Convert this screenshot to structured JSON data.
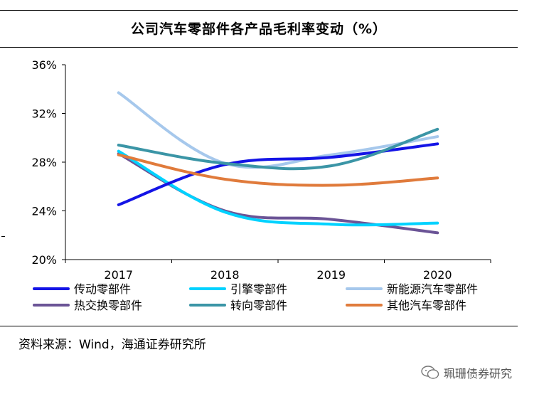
{
  "header": {
    "title": "公司汽车零部件各产品毛利率变动（%）"
  },
  "footer": {
    "source": "资料来源：Wind，海通证券研究所"
  },
  "watermark": {
    "text": "珮珊债券研究",
    "icon": "wechat-icon"
  },
  "chart_data": {
    "type": "line",
    "title": "公司汽车零部件各产品毛利率变动（%）",
    "xlabel": "",
    "ylabel": "",
    "categories": [
      "2017",
      "2018",
      "2019",
      "2020"
    ],
    "ylim": [
      20,
      36
    ],
    "yticks": [
      20,
      24,
      28,
      32,
      36
    ],
    "ytick_labels": [
      "20%",
      "24%",
      "28%",
      "32%",
      "36%"
    ],
    "grid": false,
    "legend_position": "bottom",
    "series": [
      {
        "name": "传动零部件",
        "color": "#1414e6",
        "values": [
          24.5,
          27.8,
          28.4,
          29.5
        ]
      },
      {
        "name": "引擎零部件",
        "color": "#00d2ff",
        "values": [
          28.9,
          23.9,
          22.9,
          23.0
        ]
      },
      {
        "name": "新能源汽车零部件",
        "color": "#a6c8ec",
        "values": [
          33.7,
          27.9,
          28.6,
          30.1
        ]
      },
      {
        "name": "热交换零部件",
        "color": "#6b5496",
        "values": [
          28.7,
          24.0,
          23.3,
          22.2
        ]
      },
      {
        "name": "转向零部件",
        "color": "#3b95a6",
        "values": [
          29.4,
          27.9,
          27.7,
          30.7
        ]
      },
      {
        "name": "其他汽车零部件",
        "color": "#e07b3c",
        "values": [
          28.6,
          26.6,
          26.1,
          26.7
        ]
      }
    ]
  }
}
